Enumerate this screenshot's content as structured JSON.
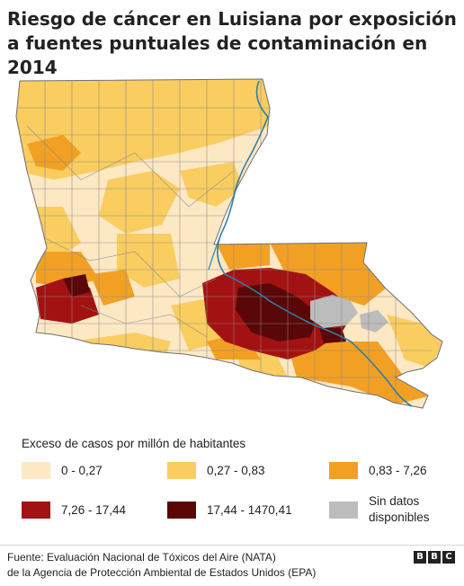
{
  "title": "Riesgo de cáncer en Luisiana por exposición a fuentes puntuales de contaminación en 2014",
  "legend": {
    "title": "Exceso de casos por millón de habitantes",
    "items": [
      {
        "label": "0 - 0,27",
        "color": "#fde8c4"
      },
      {
        "label": "0,27 - 0,83",
        "color": "#f9cd60"
      },
      {
        "label": "0,83 - 7,26",
        "color": "#f2a024"
      },
      {
        "label": "7,26 - 17,44",
        "color": "#a31212"
      },
      {
        "label": "17,44 - 1470,41",
        "color": "#5a0707"
      },
      {
        "label": "Sin datos disponibles",
        "color": "#bcbcbc"
      }
    ]
  },
  "source": {
    "line1": "Fuente:  Evaluación Nacional de Tóxicos del Aire (NATA)",
    "line2": "de la Agencia de Protección Ambiental de Estados Unidos (EPA)"
  },
  "logo": [
    "B",
    "B",
    "C"
  ],
  "colors": {
    "river": "#2f7fa6",
    "tract_border": "#8a8a8a"
  }
}
